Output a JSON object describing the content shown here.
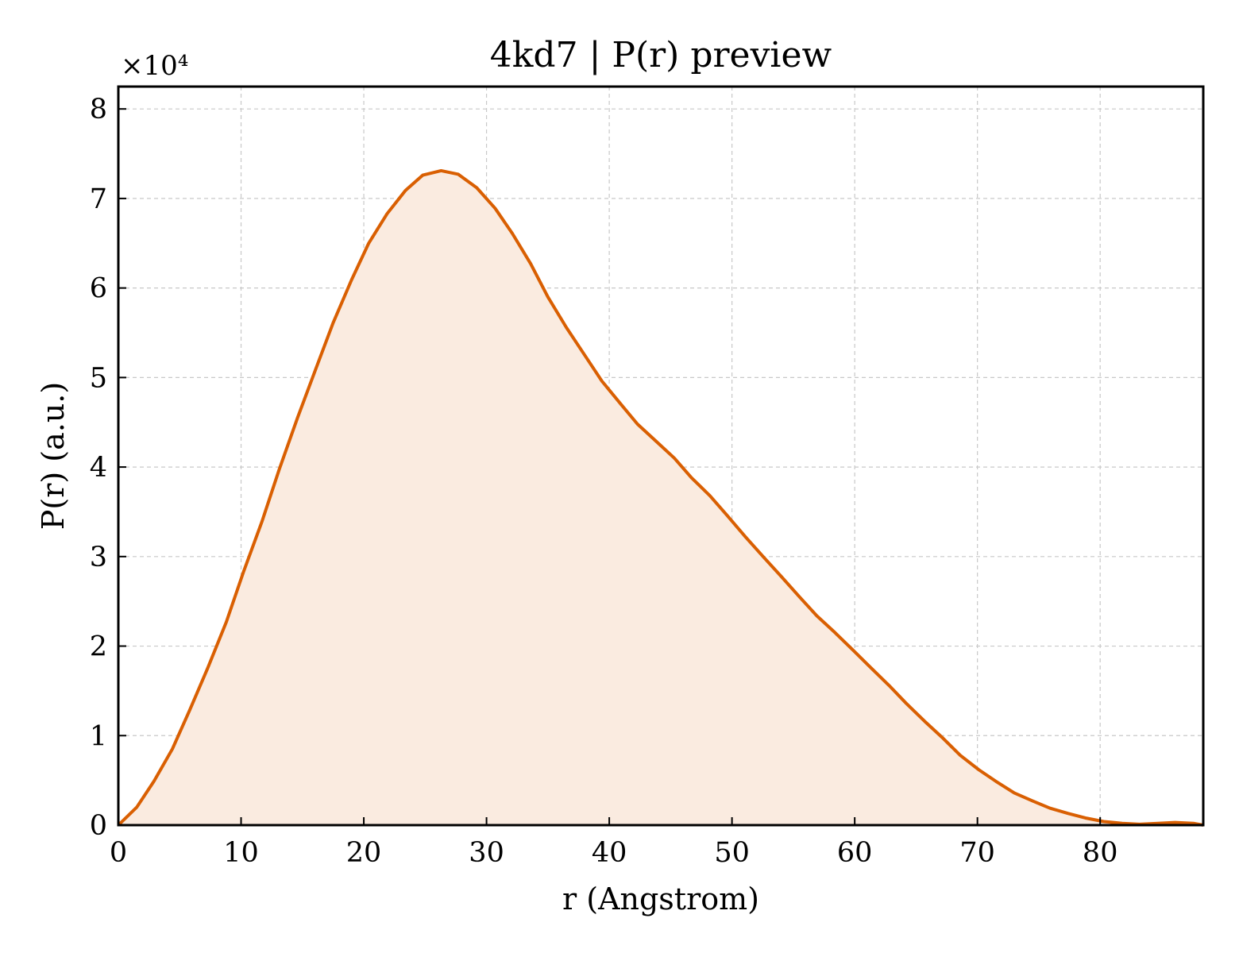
{
  "chart_data": {
    "type": "area",
    "title": "4kd7 | P(r) preview",
    "xlabel": "r (Angstrom)",
    "ylabel": "P(r) (a.u.)",
    "y_offset_label": "×10⁴",
    "y_scale": 10000,
    "xlim": [
      0,
      88.4
    ],
    "ylim": [
      0,
      82500
    ],
    "x_ticks": [
      0,
      10,
      20,
      30,
      40,
      50,
      60,
      70,
      80
    ],
    "x_tick_labels": [
      "0",
      "10",
      "20",
      "30",
      "40",
      "50",
      "60",
      "70",
      "80"
    ],
    "y_ticks": [
      0,
      10000,
      20000,
      30000,
      40000,
      50000,
      60000,
      70000,
      80000
    ],
    "y_tick_labels": [
      "0",
      "1",
      "2",
      "3",
      "4",
      "5",
      "6",
      "7",
      "8"
    ],
    "grid": true,
    "line_color": "#d95f02",
    "fill_color": "#faebe0",
    "series": [
      {
        "x": [
          0,
          1.5,
          2.9,
          4.4,
          5.8,
          7.3,
          8.8,
          10.2,
          11.7,
          13.1,
          14.6,
          16.1,
          17.5,
          19.0,
          20.4,
          21.9,
          23.4,
          24.8,
          26.3,
          27.7,
          29.2,
          30.7,
          32.1,
          33.6,
          35.0,
          36.5,
          38.0,
          39.4,
          40.9,
          42.3,
          43.8,
          45.3,
          46.7,
          48.2,
          49.6,
          51.1,
          52.6,
          54.0,
          55.5,
          56.9,
          58.4,
          59.9,
          61.3,
          62.8,
          64.2,
          65.7,
          67.2,
          68.6,
          70.1,
          71.5,
          73.0,
          74.5,
          75.9,
          77.4,
          78.8,
          80.3,
          81.8,
          83.2,
          84.7,
          86.1,
          87.6,
          88.4
        ],
        "values": [
          0,
          2000,
          4900,
          8500,
          12800,
          17600,
          22700,
          28300,
          33900,
          39700,
          45500,
          51000,
          56100,
          60900,
          65000,
          68300,
          70900,
          72600,
          73100,
          72700,
          71200,
          68900,
          66100,
          62700,
          59000,
          55600,
          52500,
          49600,
          47100,
          44800,
          42900,
          41000,
          38800,
          36800,
          34600,
          32200,
          29900,
          27800,
          25500,
          23400,
          21500,
          19500,
          17600,
          15600,
          13600,
          11600,
          9700,
          7800,
          6200,
          4900,
          3600,
          2700,
          1900,
          1300,
          800,
          400,
          200,
          100,
          200,
          300,
          200,
          0
        ]
      }
    ]
  }
}
